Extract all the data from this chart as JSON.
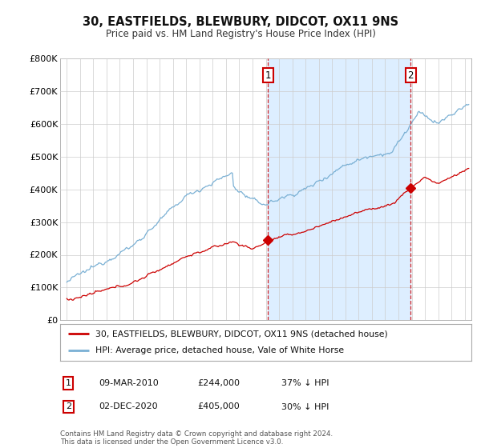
{
  "title": "30, EASTFIELDS, BLEWBURY, DIDCOT, OX11 9NS",
  "subtitle": "Price paid vs. HM Land Registry's House Price Index (HPI)",
  "legend_property": "30, EASTFIELDS, BLEWBURY, DIDCOT, OX11 9NS (detached house)",
  "legend_hpi": "HPI: Average price, detached house, Vale of White Horse",
  "transaction1_date": "09-MAR-2010",
  "transaction1_price": "£244,000",
  "transaction1_hpi": "37% ↓ HPI",
  "transaction1_year": 2010.18,
  "transaction1_value": 244000,
  "transaction2_date": "02-DEC-2020",
  "transaction2_price": "£405,000",
  "transaction2_hpi": "30% ↓ HPI",
  "transaction2_year": 2020.92,
  "transaction2_value": 405000,
  "footer": "Contains HM Land Registry data © Crown copyright and database right 2024.\nThis data is licensed under the Open Government Licence v3.0.",
  "property_color": "#cc0000",
  "hpi_color": "#7ab0d4",
  "shade_color": "#ddeeff",
  "transaction_line_color": "#cc0000",
  "background_color": "#ffffff",
  "grid_color": "#cccccc",
  "ylim": [
    0,
    800000
  ],
  "xlim_start": 1994.5,
  "xlim_end": 2025.5
}
